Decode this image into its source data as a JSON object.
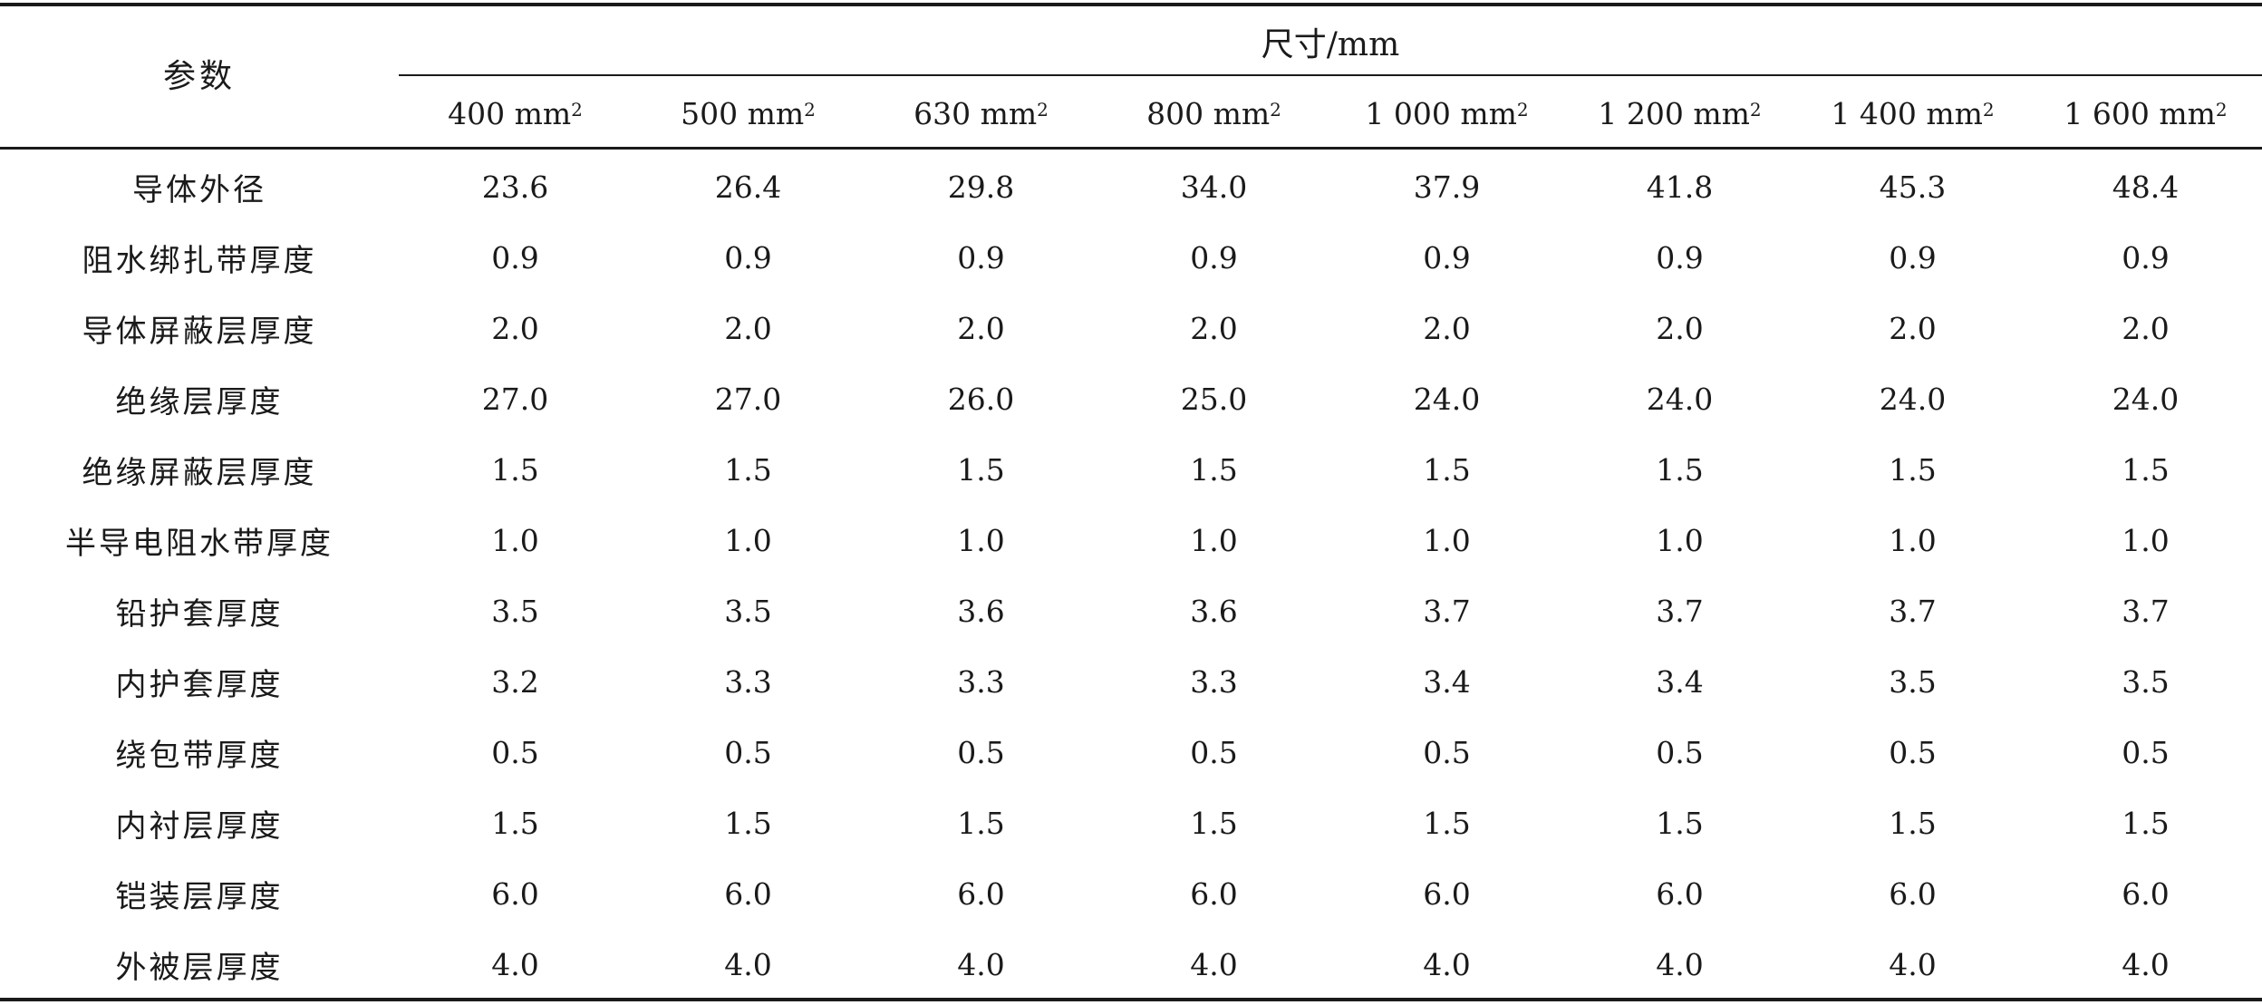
{
  "table": {
    "param_header": "参数",
    "dimension_header": "尺寸/mm",
    "columns": [
      {
        "label": "400 mm",
        "sup": "2"
      },
      {
        "label": "500 mm",
        "sup": "2"
      },
      {
        "label": "630 mm",
        "sup": "2"
      },
      {
        "label": "800 mm",
        "sup": "2"
      },
      {
        "label": "1 000 mm",
        "sup": "2"
      },
      {
        "label": "1 200 mm",
        "sup": "2"
      },
      {
        "label": "1 400 mm",
        "sup": "2"
      },
      {
        "label": "1 600 mm",
        "sup": "2"
      }
    ],
    "rows": [
      {
        "label": "导体外径",
        "values": [
          "23.6",
          "26.4",
          "29.8",
          "34.0",
          "37.9",
          "41.8",
          "45.3",
          "48.4"
        ]
      },
      {
        "label": "阻水绑扎带厚度",
        "values": [
          "0.9",
          "0.9",
          "0.9",
          "0.9",
          "0.9",
          "0.9",
          "0.9",
          "0.9"
        ]
      },
      {
        "label": "导体屏蔽层厚度",
        "values": [
          "2.0",
          "2.0",
          "2.0",
          "2.0",
          "2.0",
          "2.0",
          "2.0",
          "2.0"
        ]
      },
      {
        "label": "绝缘层厚度",
        "values": [
          "27.0",
          "27.0",
          "26.0",
          "25.0",
          "24.0",
          "24.0",
          "24.0",
          "24.0"
        ]
      },
      {
        "label": "绝缘屏蔽层厚度",
        "values": [
          "1.5",
          "1.5",
          "1.5",
          "1.5",
          "1.5",
          "1.5",
          "1.5",
          "1.5"
        ]
      },
      {
        "label": "半导电阻水带厚度",
        "values": [
          "1.0",
          "1.0",
          "1.0",
          "1.0",
          "1.0",
          "1.0",
          "1.0",
          "1.0"
        ]
      },
      {
        "label": "铅护套厚度",
        "values": [
          "3.5",
          "3.5",
          "3.6",
          "3.6",
          "3.7",
          "3.7",
          "3.7",
          "3.7"
        ]
      },
      {
        "label": "内护套厚度",
        "values": [
          "3.2",
          "3.3",
          "3.3",
          "3.3",
          "3.4",
          "3.4",
          "3.5",
          "3.5"
        ]
      },
      {
        "label": "绕包带厚度",
        "values": [
          "0.5",
          "0.5",
          "0.5",
          "0.5",
          "0.5",
          "0.5",
          "0.5",
          "0.5"
        ]
      },
      {
        "label": "内衬层厚度",
        "values": [
          "1.5",
          "1.5",
          "1.5",
          "1.5",
          "1.5",
          "1.5",
          "1.5",
          "1.5"
        ]
      },
      {
        "label": "铠装层厚度",
        "values": [
          "6.0",
          "6.0",
          "6.0",
          "6.0",
          "6.0",
          "6.0",
          "6.0",
          "6.0"
        ]
      },
      {
        "label": "外被层厚度",
        "values": [
          "4.0",
          "4.0",
          "4.0",
          "4.0",
          "4.0",
          "4.0",
          "4.0",
          "4.0"
        ]
      }
    ]
  }
}
